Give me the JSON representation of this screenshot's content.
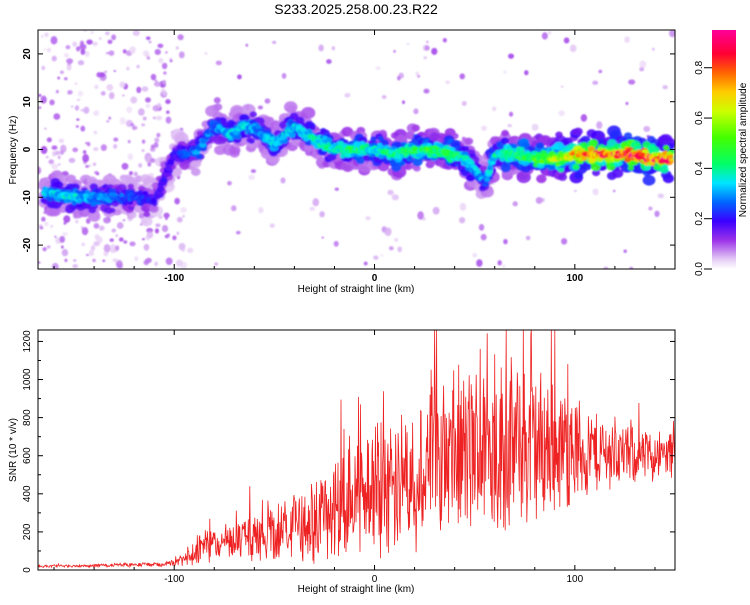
{
  "figure": {
    "title": "S233.2025.258.00.23.R22"
  },
  "chart_data": [
    {
      "type": "heatmap",
      "name": "spectrogram",
      "xlabel": "Height of straight line (km)",
      "ylabel": "Frequency (Hz)",
      "xlim": [
        -168,
        150
      ],
      "ylim": [
        -25,
        25
      ],
      "x_ticks": [
        "-100",
        "0",
        "100"
      ],
      "y_ticks": [
        "-20",
        "-10",
        "0",
        "10",
        "20"
      ],
      "grid": false,
      "colorscale": "rainbow (violet low to red/magenta high)",
      "colorbar": {
        "label": "Normalized spectral amplitude",
        "range": [
          0,
          0.95
        ],
        "ticks": [
          "0.0",
          "0.2",
          "0.4",
          "0.6",
          "0.8"
        ]
      },
      "ridge": {
        "description": "dominant frequency ridge vs height",
        "x": [
          -165,
          -150,
          -135,
          -120,
          -110,
          -100,
          -95,
          -88,
          -80,
          -72,
          -65,
          -58,
          -50,
          -40,
          -30,
          -20,
          -10,
          0,
          10,
          20,
          30,
          40,
          45,
          50,
          55,
          60,
          70,
          80,
          90,
          100,
          110,
          120,
          130,
          140,
          148
        ],
        "y": [
          -9,
          -10,
          -10,
          -10,
          -11,
          -1,
          -1,
          0,
          5,
          3,
          5,
          4,
          1,
          5,
          2,
          0,
          0,
          0,
          -1,
          0,
          0,
          -1,
          -2,
          -4,
          -7,
          -1,
          -1,
          -2,
          -2,
          -1,
          -1,
          -1,
          -1,
          -2,
          -2
        ],
        "amplitude": [
          0.35,
          0.35,
          0.3,
          0.25,
          0.2,
          0.2,
          0.25,
          0.3,
          0.3,
          0.35,
          0.35,
          0.3,
          0.35,
          0.35,
          0.4,
          0.4,
          0.45,
          0.4,
          0.45,
          0.45,
          0.5,
          0.45,
          0.4,
          0.35,
          0.3,
          0.4,
          0.45,
          0.5,
          0.6,
          0.75,
          0.85,
          0.85,
          0.9,
          0.85,
          0.85
        ]
      }
    },
    {
      "type": "line",
      "name": "snr",
      "xlabel": "Height of straight line (km)",
      "ylabel": "SNR (10 * v/v)",
      "xlim": [
        -168,
        150
      ],
      "ylim": [
        0,
        1260
      ],
      "x_ticks": [
        "-100",
        "0",
        "100"
      ],
      "y_ticks": [
        "0",
        "200",
        "400",
        "600",
        "800",
        "1000",
        "1200"
      ],
      "grid": false,
      "series": [
        {
          "color": "#ee2222",
          "x": [
            -168,
            -150,
            -130,
            -110,
            -100,
            -95,
            -90,
            -85,
            -80,
            -70,
            -60,
            -50,
            -40,
            -30,
            -20,
            -10,
            0,
            10,
            20,
            30,
            40,
            50,
            60,
            70,
            80,
            90,
            100,
            110,
            120,
            130,
            140,
            150
          ],
          "y": [
            20,
            20,
            25,
            30,
            35,
            60,
            100,
            130,
            140,
            150,
            170,
            200,
            220,
            260,
            320,
            380,
            430,
            480,
            520,
            560,
            600,
            620,
            640,
            650,
            650,
            640,
            630,
            620,
            610,
            600,
            600,
            600
          ],
          "spread": [
            8,
            8,
            10,
            15,
            20,
            40,
            90,
            100,
            100,
            110,
            140,
            180,
            200,
            250,
            300,
            350,
            380,
            420,
            450,
            480,
            500,
            520,
            540,
            500,
            480,
            400,
            330,
            250,
            200,
            160,
            150,
            150
          ]
        }
      ]
    }
  ]
}
